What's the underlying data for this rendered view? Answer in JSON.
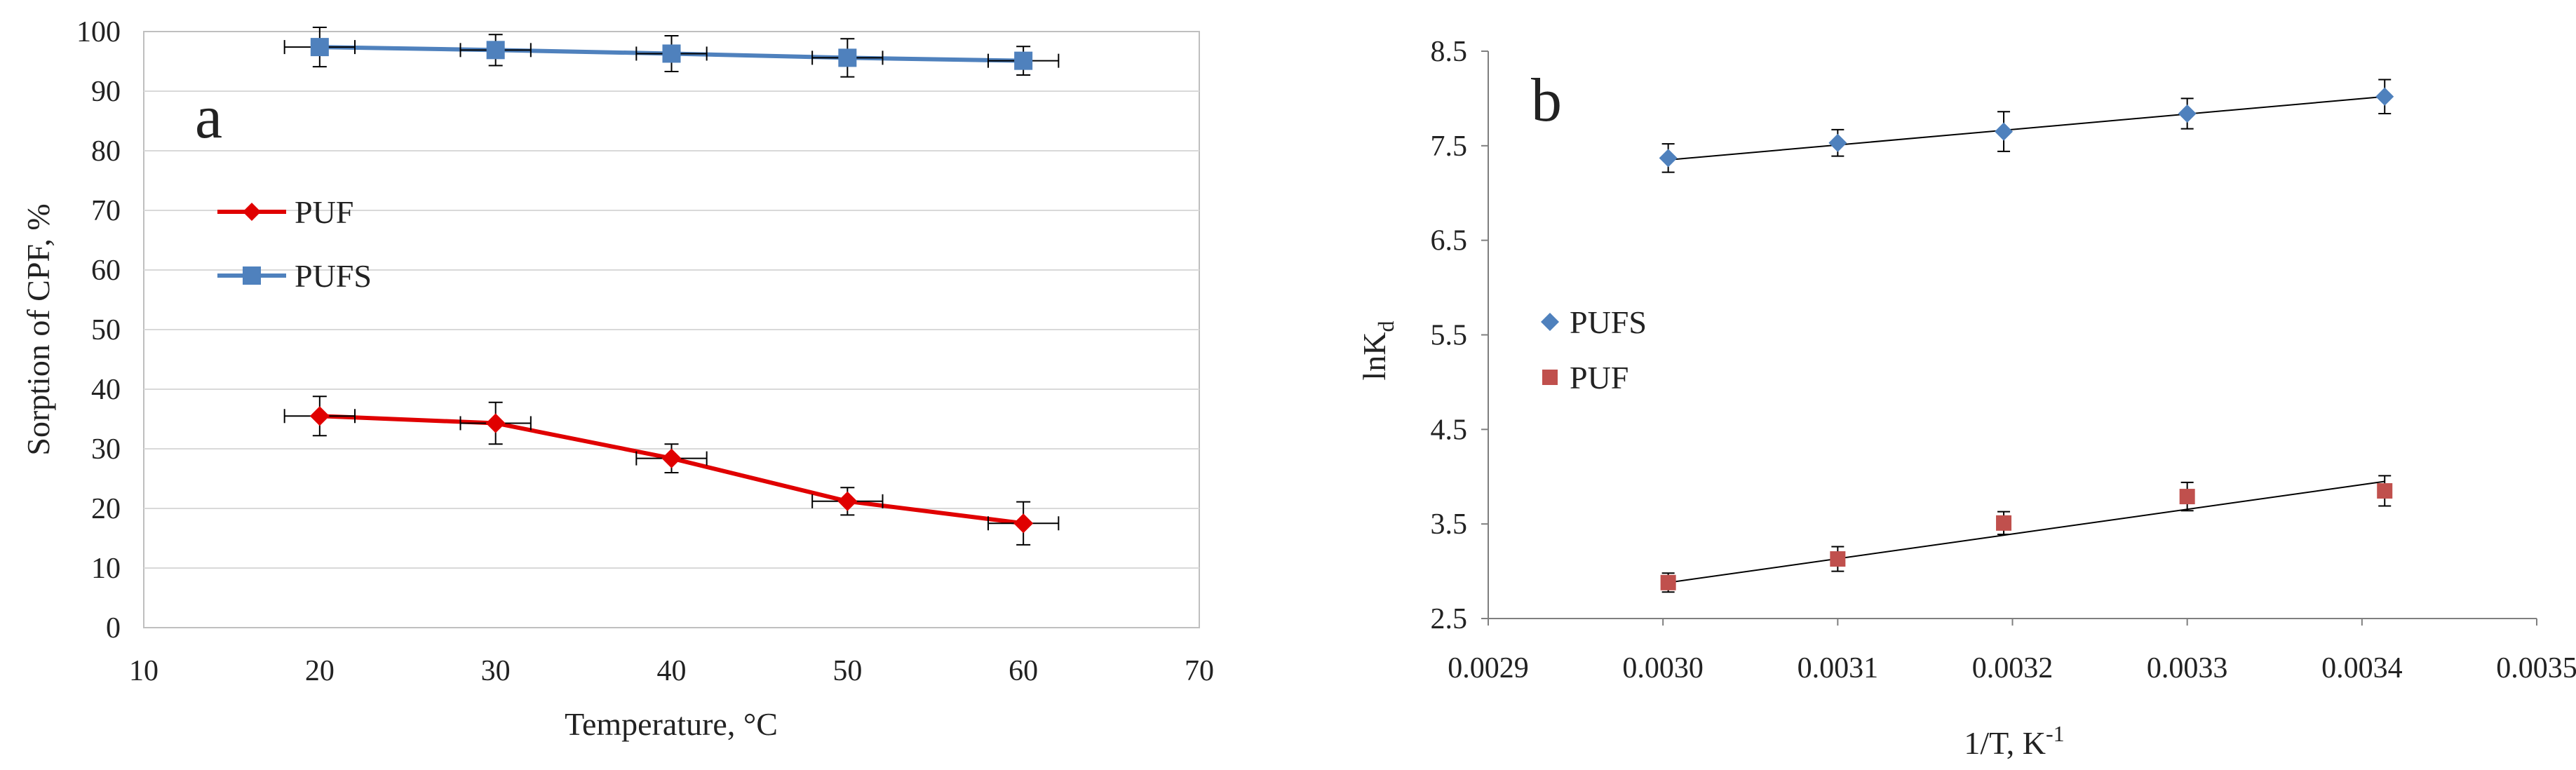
{
  "chart_data": [
    {
      "id": "a",
      "type": "line",
      "panel_label": "a",
      "xlabel": "Temperature, °C",
      "ylabel": "Sorption of CPF, %",
      "xlim": [
        10,
        70
      ],
      "ylim": [
        0,
        100
      ],
      "x_ticks": [
        10,
        20,
        30,
        40,
        50,
        60,
        70
      ],
      "x_tick_labels": [
        "10",
        "20",
        "30",
        "40",
        "50",
        "60",
        "70"
      ],
      "y_ticks": [
        0,
        10,
        20,
        30,
        40,
        50,
        60,
        70,
        80,
        90,
        100
      ],
      "y_tick_labels": [
        "0",
        "10",
        "20",
        "30",
        "40",
        "50",
        "60",
        "70",
        "80",
        "90",
        "100"
      ],
      "grid": "horizontal",
      "legend_position": "middle-left",
      "series": [
        {
          "name": "PUF",
          "marker": "diamond",
          "color": "#e00000",
          "x": [
            20,
            30,
            40,
            50,
            60
          ],
          "y": [
            35.5,
            34.3,
            28.4,
            21.2,
            17.5
          ],
          "y_err": [
            3.3,
            3.5,
            2.4,
            2.3,
            3.6
          ],
          "x_err": [
            2,
            2,
            2,
            2,
            2
          ]
        },
        {
          "name": "PUFS",
          "marker": "square",
          "color": "#4f81bd",
          "x": [
            20,
            30,
            40,
            50,
            60
          ],
          "y": [
            97.4,
            96.9,
            96.3,
            95.6,
            95.1
          ],
          "y_err": [
            3.3,
            2.6,
            3.0,
            3.2,
            2.4
          ],
          "x_err": [
            2,
            2,
            2,
            2,
            2
          ]
        }
      ]
    },
    {
      "id": "b",
      "type": "scatter",
      "panel_label": "b",
      "xlabel": "1/T, K",
      "xlabel_superscript": "-1",
      "ylabel": "lnK",
      "ylabel_subscript": "d",
      "xlim": [
        0.0029,
        0.0035
      ],
      "ylim": [
        2.5,
        8.5
      ],
      "x_ticks": [
        0.0029,
        0.003,
        0.0031,
        0.0032,
        0.0033,
        0.0034,
        0.0035
      ],
      "x_tick_labels": [
        "0.0029",
        "0.0030",
        "0.0031",
        "0.0032",
        "0.0033",
        "0.0034",
        "0.0035"
      ],
      "y_ticks": [
        2.5,
        3.5,
        4.5,
        5.5,
        6.5,
        7.5,
        8.5
      ],
      "y_tick_labels": [
        "2.5",
        "3.5",
        "4.5",
        "5.5",
        "6.5",
        "7.5",
        "8.5"
      ],
      "grid": "none",
      "legend_position": "middle-left",
      "series": [
        {
          "name": "PUFS",
          "marker": "diamond",
          "color": "#4f81bd",
          "x": [
            0.003003,
            0.0031,
            0.003195,
            0.0033,
            0.003413
          ],
          "y": [
            7.37,
            7.53,
            7.65,
            7.84,
            8.02
          ],
          "y_err": [
            0.15,
            0.14,
            0.21,
            0.16,
            0.18
          ],
          "trendline": {
            "x0": 0.003003,
            "y0": 7.35,
            "x1": 0.003413,
            "y1": 8.02
          }
        },
        {
          "name": "PUF",
          "marker": "square",
          "color": "#c0504d",
          "x": [
            0.003003,
            0.0031,
            0.003195,
            0.0033,
            0.003413
          ],
          "y": [
            2.88,
            3.13,
            3.51,
            3.79,
            3.85
          ],
          "y_err": [
            0.1,
            0.13,
            0.12,
            0.15,
            0.16
          ],
          "trendline": {
            "x0": 0.003003,
            "y0": 2.88,
            "x1": 0.003413,
            "y1": 3.95
          }
        }
      ]
    }
  ]
}
